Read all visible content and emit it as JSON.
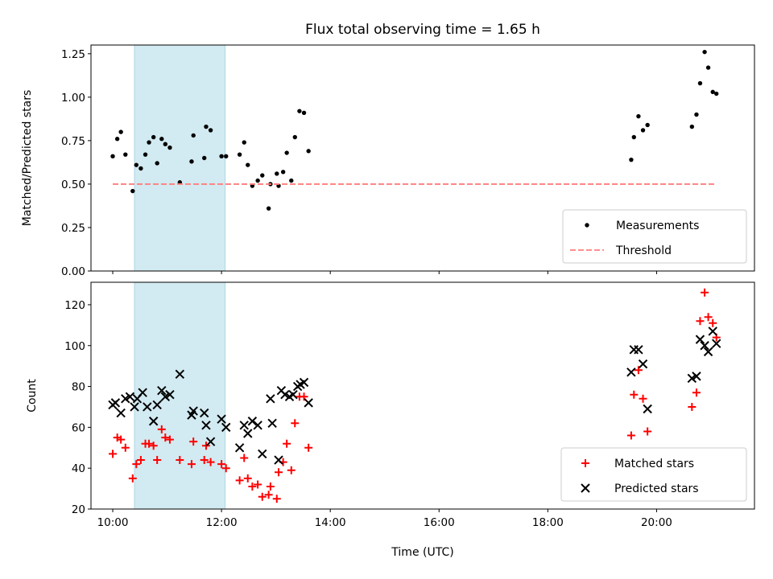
{
  "colors": {
    "measurement": "#000000",
    "threshold": "#ff7f7f",
    "matched": "#ff0000",
    "predicted": "#000000",
    "highlight": "#add8e6"
  },
  "chart_data": [
    {
      "type": "scatter",
      "title": "Flux total observing time = 1.65 h",
      "ylabel": "Matched/Predicted stars",
      "xlabel": "",
      "x_unit": "time (UTC)",
      "xlim": [
        "09:36",
        "21:48"
      ],
      "ylim": [
        0,
        1.3
      ],
      "xticks": [
        "10:00",
        "12:00",
        "14:00",
        "16:00",
        "18:00",
        "20:00"
      ],
      "yticks": [
        0.0,
        0.25,
        0.5,
        0.75,
        1.0,
        1.25
      ],
      "ytick_labels": [
        "0.00",
        "0.25",
        "0.50",
        "0.75",
        "1.00",
        "1.25"
      ],
      "highlight_span": [
        "10:24",
        "12:04"
      ],
      "legend": {
        "position": "lower right",
        "entries": [
          "Measurements",
          "Threshold"
        ]
      },
      "series": [
        {
          "name": "Measurements",
          "marker": "dot",
          "points": [
            [
              "10:00",
              0.66
            ],
            [
              "10:05",
              0.76
            ],
            [
              "10:09",
              0.8
            ],
            [
              "10:14",
              0.67
            ],
            [
              "10:22",
              0.46
            ],
            [
              "10:26",
              0.61
            ],
            [
              "10:31",
              0.59
            ],
            [
              "10:36",
              0.67
            ],
            [
              "10:40",
              0.74
            ],
            [
              "10:45",
              0.77
            ],
            [
              "10:49",
              0.62
            ],
            [
              "10:54",
              0.76
            ],
            [
              "10:58",
              0.73
            ],
            [
              "11:03",
              0.71
            ],
            [
              "11:14",
              0.51
            ],
            [
              "11:27",
              0.63
            ],
            [
              "11:29",
              0.78
            ],
            [
              "11:41",
              0.65
            ],
            [
              "11:43",
              0.83
            ],
            [
              "11:48",
              0.81
            ],
            [
              "12:00",
              0.66
            ],
            [
              "12:05",
              0.66
            ],
            [
              "12:20",
              0.67
            ],
            [
              "12:25",
              0.74
            ],
            [
              "12:29",
              0.61
            ],
            [
              "12:34",
              0.49
            ],
            [
              "12:40",
              0.52
            ],
            [
              "12:45",
              0.55
            ],
            [
              "12:52",
              0.36
            ],
            [
              "12:54",
              0.5
            ],
            [
              "13:01",
              0.56
            ],
            [
              "13:03",
              0.49
            ],
            [
              "13:08",
              0.57
            ],
            [
              "13:12",
              0.68
            ],
            [
              "13:17",
              0.52
            ],
            [
              "13:21",
              0.77
            ],
            [
              "13:26",
              0.92
            ],
            [
              "13:31",
              0.91
            ],
            [
              "13:36",
              0.69
            ],
            [
              "19:32",
              0.64
            ],
            [
              "19:35",
              0.77
            ],
            [
              "19:40",
              0.89
            ],
            [
              "19:45",
              0.81
            ],
            [
              "19:50",
              0.84
            ],
            [
              "20:39",
              0.83
            ],
            [
              "20:44",
              0.9
            ],
            [
              "20:48",
              1.08
            ],
            [
              "20:53",
              1.26
            ],
            [
              "20:57",
              1.17
            ],
            [
              "21:02",
              1.03
            ],
            [
              "21:06",
              1.02
            ]
          ]
        },
        {
          "name": "Threshold",
          "style": "dashed",
          "points": [
            [
              "10:00",
              0.5
            ],
            [
              "21:06",
              0.5
            ]
          ]
        }
      ]
    },
    {
      "type": "scatter",
      "title": "",
      "ylabel": "Count",
      "xlabel": "Time (UTC)",
      "xlim": [
        "09:36",
        "21:48"
      ],
      "ylim": [
        20,
        131
      ],
      "xticks": [
        "10:00",
        "12:00",
        "14:00",
        "16:00",
        "18:00",
        "20:00"
      ],
      "xtick_labels": [
        "10:00",
        "12:00",
        "14:00",
        "16:00",
        "18:00",
        "20:00"
      ],
      "yticks": [
        20,
        40,
        60,
        80,
        100,
        120
      ],
      "highlight_span": [
        "10:24",
        "12:04"
      ],
      "legend": {
        "position": "lower right",
        "entries": [
          "Matched stars",
          "Predicted stars"
        ]
      },
      "series": [
        {
          "name": "Matched stars",
          "marker": "plus",
          "points": [
            [
              "10:00",
              47
            ],
            [
              "10:05",
              55
            ],
            [
              "10:09",
              54
            ],
            [
              "10:14",
              50
            ],
            [
              "10:22",
              35
            ],
            [
              "10:26",
              42
            ],
            [
              "10:31",
              44
            ],
            [
              "10:36",
              52
            ],
            [
              "10:40",
              52
            ],
            [
              "10:45",
              51
            ],
            [
              "10:49",
              44
            ],
            [
              "10:54",
              59
            ],
            [
              "10:58",
              55
            ],
            [
              "11:03",
              54
            ],
            [
              "11:14",
              44
            ],
            [
              "11:27",
              42
            ],
            [
              "11:29",
              53
            ],
            [
              "11:41",
              44
            ],
            [
              "11:43",
              51
            ],
            [
              "11:48",
              43
            ],
            [
              "12:00",
              42
            ],
            [
              "12:05",
              40
            ],
            [
              "12:20",
              34
            ],
            [
              "12:25",
              45
            ],
            [
              "12:29",
              35
            ],
            [
              "12:34",
              31
            ],
            [
              "12:40",
              32
            ],
            [
              "12:45",
              26
            ],
            [
              "12:52",
              27
            ],
            [
              "12:54",
              31
            ],
            [
              "13:01",
              25
            ],
            [
              "13:03",
              38
            ],
            [
              "13:08",
              43
            ],
            [
              "13:12",
              52
            ],
            [
              "13:17",
              39
            ],
            [
              "13:21",
              62
            ],
            [
              "13:26",
              75
            ],
            [
              "13:31",
              75
            ],
            [
              "13:36",
              50
            ],
            [
              "19:32",
              56
            ],
            [
              "19:35",
              76
            ],
            [
              "19:40",
              88
            ],
            [
              "19:45",
              74
            ],
            [
              "19:50",
              58
            ],
            [
              "20:39",
              70
            ],
            [
              "20:44",
              77
            ],
            [
              "20:48",
              112
            ],
            [
              "20:53",
              126
            ],
            [
              "20:57",
              114
            ],
            [
              "21:02",
              111
            ],
            [
              "21:06",
              104
            ]
          ]
        },
        {
          "name": "Predicted stars",
          "marker": "x",
          "points": [
            [
              "10:00",
              71
            ],
            [
              "10:03",
              72
            ],
            [
              "10:09",
              67
            ],
            [
              "10:14",
              74
            ],
            [
              "10:19",
              75
            ],
            [
              "10:24",
              70
            ],
            [
              "10:27",
              74
            ],
            [
              "10:33",
              77
            ],
            [
              "10:38",
              70
            ],
            [
              "10:45",
              63
            ],
            [
              "10:49",
              71
            ],
            [
              "10:54",
              78
            ],
            [
              "10:58",
              75
            ],
            [
              "11:03",
              76
            ],
            [
              "11:14",
              86
            ],
            [
              "11:27",
              66
            ],
            [
              "11:29",
              68
            ],
            [
              "11:41",
              67
            ],
            [
              "11:43",
              61
            ],
            [
              "11:48",
              53
            ],
            [
              "12:00",
              64
            ],
            [
              "12:05",
              60
            ],
            [
              "12:20",
              50
            ],
            [
              "12:25",
              61
            ],
            [
              "12:29",
              57
            ],
            [
              "12:34",
              63
            ],
            [
              "12:40",
              61
            ],
            [
              "12:45",
              47
            ],
            [
              "12:54",
              74
            ],
            [
              "12:56",
              62
            ],
            [
              "13:03",
              44
            ],
            [
              "13:06",
              78
            ],
            [
              "13:10",
              76
            ],
            [
              "13:15",
              75
            ],
            [
              "13:19",
              76
            ],
            [
              "13:24",
              80
            ],
            [
              "13:27",
              81
            ],
            [
              "13:31",
              82
            ],
            [
              "13:36",
              72
            ],
            [
              "19:32",
              87
            ],
            [
              "19:35",
              98
            ],
            [
              "19:40",
              98
            ],
            [
              "19:45",
              91
            ],
            [
              "19:50",
              69
            ],
            [
              "20:39",
              84
            ],
            [
              "20:44",
              85
            ],
            [
              "20:48",
              103
            ],
            [
              "20:53",
              100
            ],
            [
              "20:57",
              97
            ],
            [
              "21:02",
              107
            ],
            [
              "21:06",
              101
            ]
          ]
        }
      ]
    }
  ]
}
